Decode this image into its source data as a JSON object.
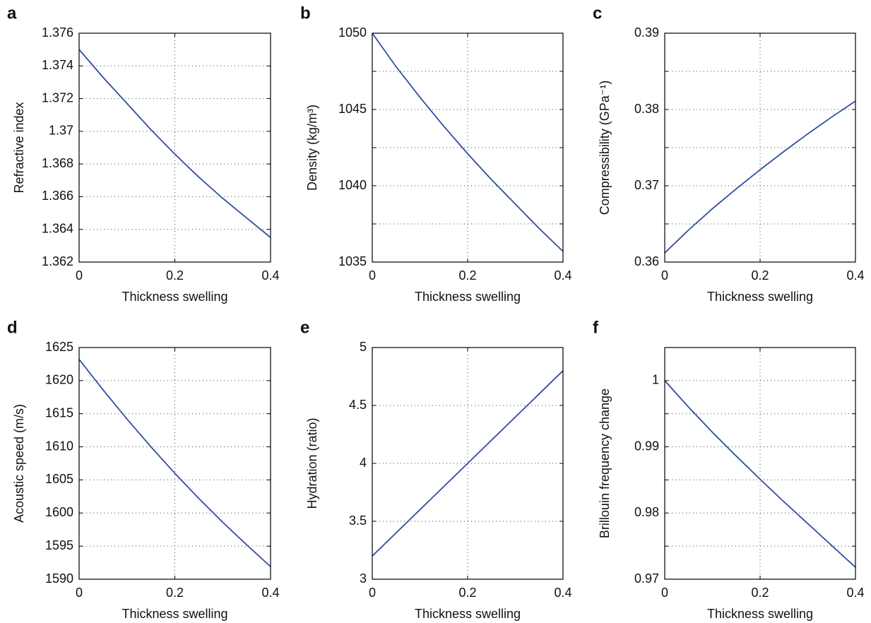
{
  "chart_data": [
    {
      "type": "line",
      "panel": "a",
      "xlabel": "Thickness swelling",
      "ylabel": "Refractive index",
      "x": [
        0,
        0.05,
        0.1,
        0.15,
        0.2,
        0.25,
        0.3,
        0.35,
        0.4
      ],
      "values": [
        1.375,
        1.3733,
        1.3717,
        1.3701,
        1.3686,
        1.3672,
        1.3659,
        1.3647,
        1.3635
      ],
      "color": "#2e4ea0",
      "xlim": [
        0,
        0.4
      ],
      "xticks": [
        0,
        0.2,
        0.4
      ],
      "ylim": [
        1.362,
        1.376
      ],
      "yticks": [
        1.362,
        1.364,
        1.366,
        1.368,
        1.37,
        1.372,
        1.374,
        1.376
      ],
      "grid": true
    },
    {
      "type": "line",
      "panel": "b",
      "xlabel": "Thickness swelling",
      "ylabel": "Density (kg/m³)",
      "x": [
        0,
        0.05,
        0.1,
        0.15,
        0.2,
        0.25,
        0.3,
        0.35,
        0.4
      ],
      "values": [
        1050,
        1047.8,
        1045.8,
        1043.9,
        1042.1,
        1040.4,
        1038.8,
        1037.2,
        1035.7
      ],
      "color": "#2e4ea0",
      "xlim": [
        0,
        0.4
      ],
      "xticks": [
        0,
        0.2,
        0.4
      ],
      "ylim": [
        1035,
        1050
      ],
      "yticks": [
        1035,
        1040,
        1045,
        1050
      ],
      "minor_yticks": [
        1037.5,
        1042.5,
        1047.5
      ],
      "grid": true
    },
    {
      "type": "line",
      "panel": "c",
      "xlabel": "Thickness swelling",
      "ylabel": "Compressibility (GPa⁻¹)",
      "x": [
        0,
        0.05,
        0.1,
        0.15,
        0.2,
        0.25,
        0.3,
        0.35,
        0.4
      ],
      "values": [
        0.3612,
        0.3642,
        0.367,
        0.3696,
        0.3721,
        0.3745,
        0.3768,
        0.379,
        0.3811
      ],
      "color": "#2e4ea0",
      "xlim": [
        0,
        0.4
      ],
      "xticks": [
        0,
        0.2,
        0.4
      ],
      "ylim": [
        0.36,
        0.39
      ],
      "yticks": [
        0.36,
        0.37,
        0.38,
        0.39
      ],
      "minor_yticks": [
        0.365,
        0.375,
        0.385
      ],
      "grid": true
    },
    {
      "type": "line",
      "panel": "d",
      "xlabel": "Thickness swelling",
      "ylabel": "Acoustic speed (m/s)",
      "x": [
        0,
        0.05,
        0.1,
        0.15,
        0.2,
        0.25,
        0.3,
        0.35,
        0.4
      ],
      "values": [
        1623.2,
        1618.6,
        1614.2,
        1610,
        1606,
        1602.2,
        1598.6,
        1595.2,
        1591.9
      ],
      "color": "#2e4ea0",
      "xlim": [
        0,
        0.4
      ],
      "xticks": [
        0,
        0.2,
        0.4
      ],
      "ylim": [
        1590,
        1625
      ],
      "yticks": [
        1590,
        1595,
        1600,
        1605,
        1610,
        1615,
        1620,
        1625
      ],
      "grid": true
    },
    {
      "type": "line",
      "panel": "e",
      "xlabel": "Thickness swelling",
      "ylabel": "Hydration (ratio)",
      "x": [
        0,
        0.4
      ],
      "values": [
        3.2,
        4.8
      ],
      "color": "#2e4ea0",
      "xlim": [
        0,
        0.4
      ],
      "xticks": [
        0,
        0.2,
        0.4
      ],
      "ylim": [
        3,
        5
      ],
      "yticks": [
        3,
        3.5,
        4,
        4.5,
        5
      ],
      "grid": true
    },
    {
      "type": "line",
      "panel": "f",
      "xlabel": "Thickness swelling",
      "ylabel": "Brillouin frequency change",
      "x": [
        0,
        0.05,
        0.1,
        0.15,
        0.2,
        0.25,
        0.3,
        0.35,
        0.4
      ],
      "values": [
        1,
        0.996,
        0.9922,
        0.9886,
        0.9851,
        0.9817,
        0.9784,
        0.9751,
        0.9718
      ],
      "color": "#2e4ea0",
      "xlim": [
        0,
        0.4
      ],
      "xticks": [
        0,
        0.2,
        0.4
      ],
      "ylim": [
        0.97,
        1.005
      ],
      "yticks": [
        0.97,
        0.98,
        0.99,
        1
      ],
      "minor_yticks": [
        0.975,
        0.985,
        0.995
      ],
      "grid": true
    }
  ]
}
